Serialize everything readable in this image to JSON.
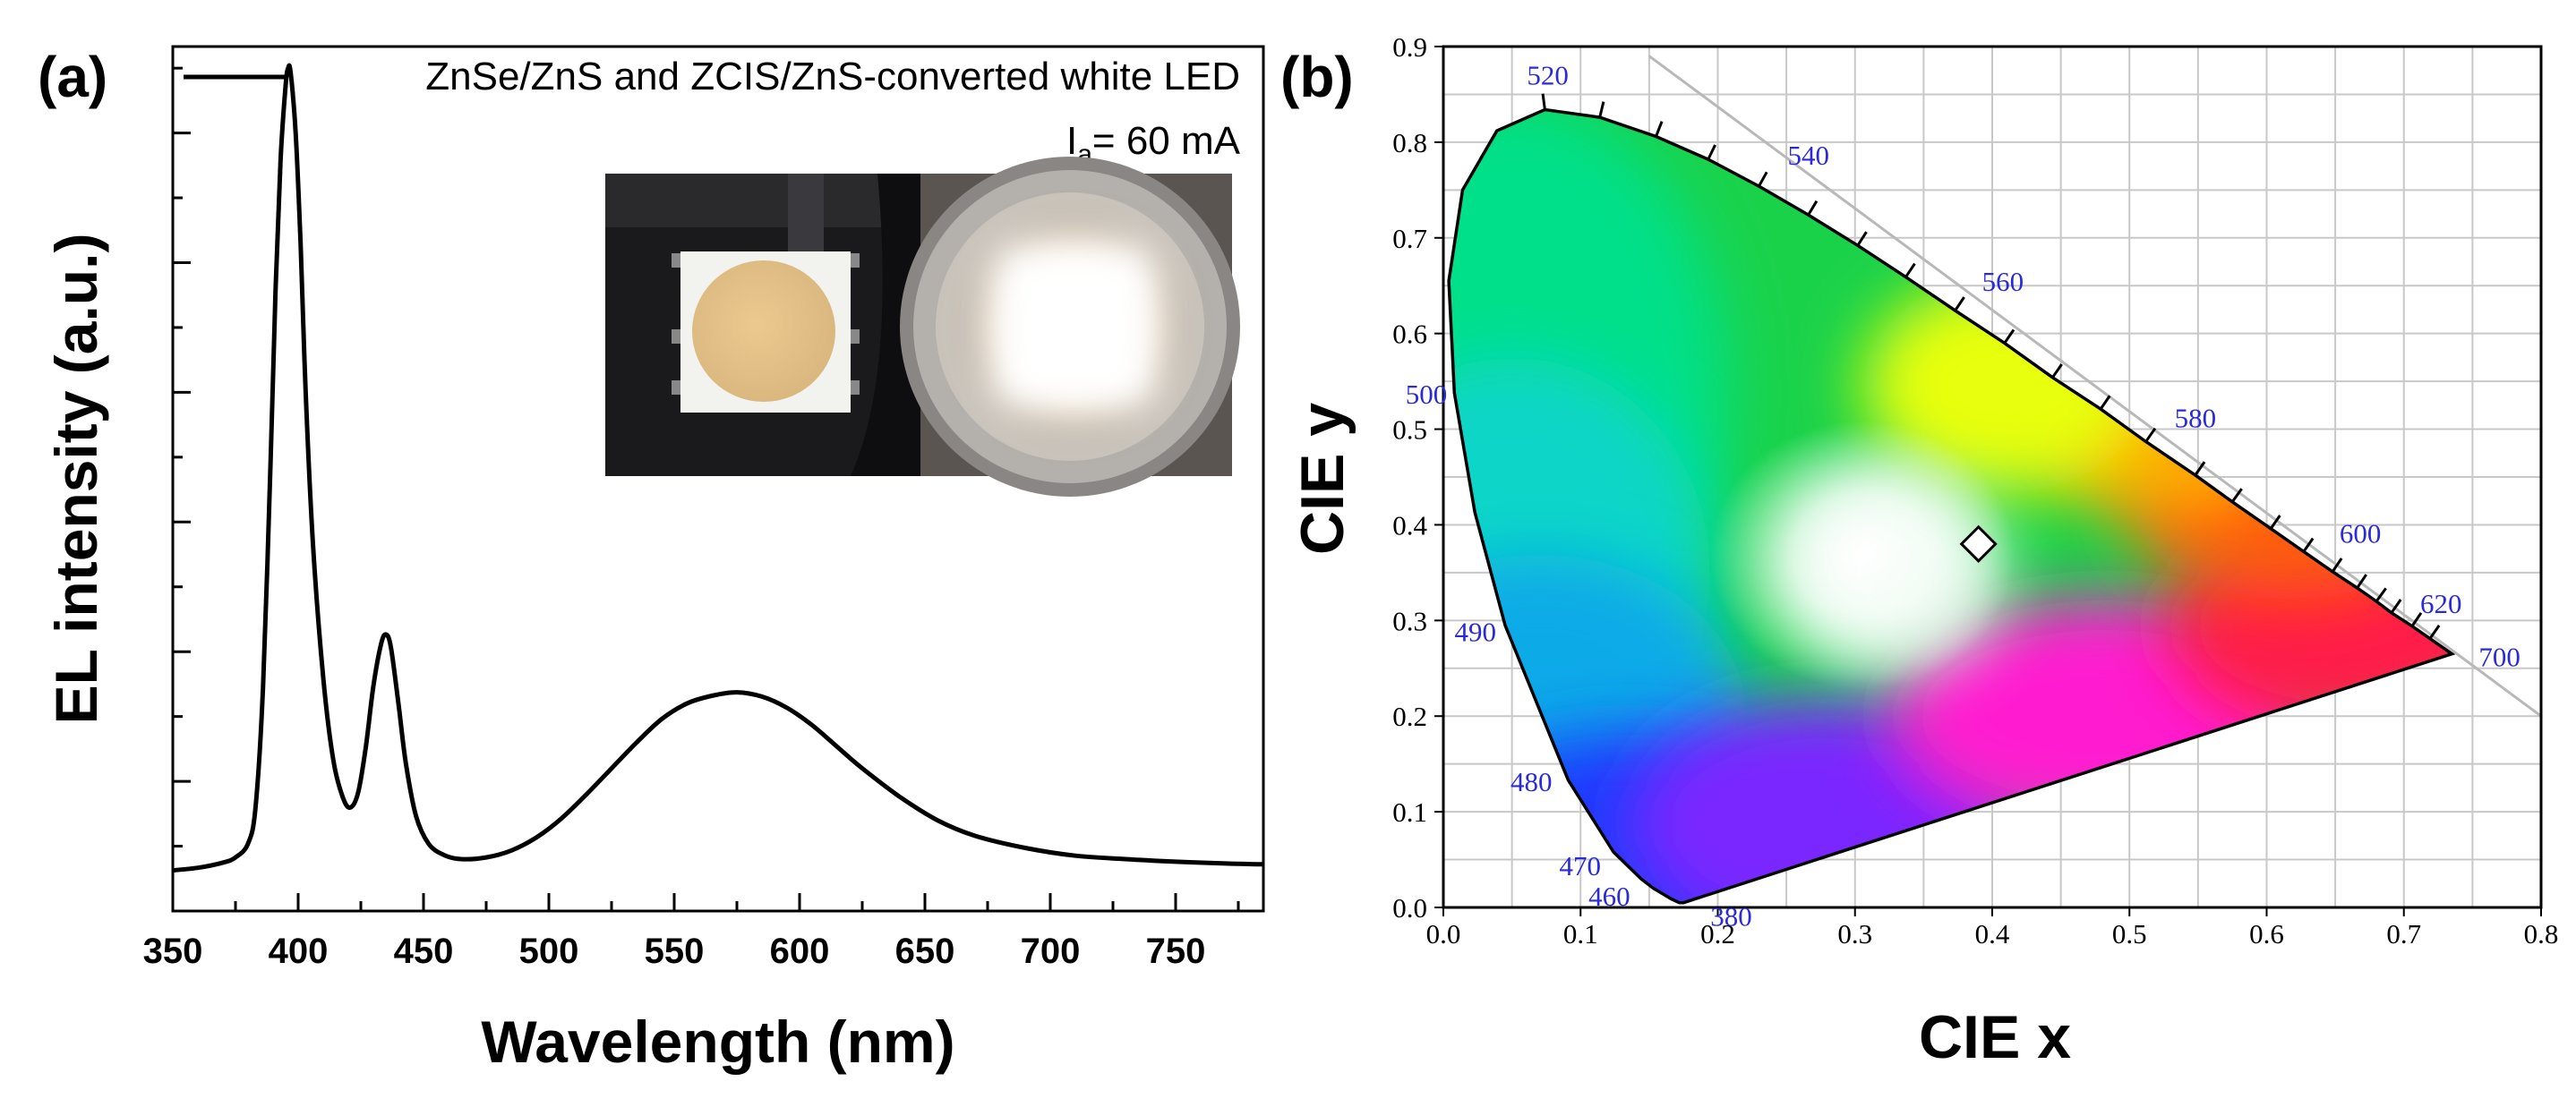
{
  "panels": [
    {
      "label": "(a)",
      "chart_data": {
        "type": "line",
        "title": "",
        "xlabel": "Wavelength (nm)",
        "ylabel": "EL intensity (a.u.)",
        "xlim": [
          350,
          785
        ],
        "ylim": [
          0,
          1.0
        ],
        "xticks": [
          350,
          400,
          450,
          500,
          550,
          600,
          650,
          700,
          750
        ],
        "yticks_labeled": false,
        "grid": false,
        "legend": {
          "entry": "ZnSe/ZnS and ZCIS/ZnS-converted white LED",
          "placement": "top-right"
        },
        "annotation": {
          "prefix": "I",
          "subscript": "a",
          "text": "= 60 mA"
        },
        "inset": {
          "description": "LED photographs (off / on)"
        },
        "series": [
          {
            "name": "ZnSe/ZnS and ZCIS/ZnS-converted white LED",
            "color": "#000000",
            "x": [
              350,
              360,
              370,
              375,
              380,
              383,
              386,
              389,
              391,
              393,
              395,
              396,
              397,
              399,
              401,
              403,
              406,
              410,
              414,
              418,
              421,
              424,
              427,
              430,
              433,
              435,
              437,
              440,
              443,
              447,
              452,
              458,
              465,
              475,
              485,
              495,
              505,
              515,
              525,
              535,
              545,
              555,
              565,
              575,
              585,
              595,
              605,
              615,
              625,
              640,
              655,
              670,
              690,
              710,
              730,
              750,
              770,
              785
            ],
            "y": [
              0.047,
              0.05,
              0.056,
              0.062,
              0.078,
              0.12,
              0.26,
              0.52,
              0.72,
              0.87,
              0.955,
              0.975,
              0.97,
              0.9,
              0.77,
              0.6,
              0.42,
              0.27,
              0.175,
              0.13,
              0.12,
              0.138,
              0.19,
              0.26,
              0.308,
              0.32,
              0.305,
              0.24,
              0.17,
              0.11,
              0.078,
              0.065,
              0.06,
              0.062,
              0.07,
              0.085,
              0.107,
              0.135,
              0.165,
              0.195,
              0.222,
              0.24,
              0.249,
              0.253,
              0.248,
              0.235,
              0.215,
              0.19,
              0.165,
              0.132,
              0.105,
              0.087,
              0.073,
              0.064,
              0.06,
              0.057,
              0.055,
              0.054
            ]
          }
        ]
      }
    },
    {
      "label": "(b)",
      "chart_data": {
        "type": "scatter",
        "title": "",
        "xlabel": "CIE x",
        "ylabel": "CIE y",
        "xlim": [
          0.0,
          0.8
        ],
        "ylim": [
          0.0,
          0.9
        ],
        "xticks": [
          0.0,
          0.1,
          0.2,
          0.3,
          0.4,
          0.5,
          0.6,
          0.7,
          0.8
        ],
        "xtick_labels": [
          "0.0",
          "0.1",
          "0.2",
          "0.3",
          "0.4",
          "0.5",
          "0.6",
          "0.7",
          "0.8"
        ],
        "yticks": [
          0.0,
          0.1,
          0.2,
          0.3,
          0.4,
          0.5,
          0.6,
          0.7,
          0.8,
          0.9
        ],
        "ytick_labels": [
          "0.0",
          "0.1",
          "0.2",
          "0.3",
          "0.4",
          "0.5",
          "0.6",
          "0.7",
          "0.8",
          "0.9"
        ],
        "grid": true,
        "point": {
          "x": 0.39,
          "y": 0.38,
          "marker": "diamond"
        },
        "wavelength_labels": [
          {
            "nm": "380",
            "x": 0.175,
            "y": 0.005
          },
          {
            "nm": "460",
            "x": 0.144,
            "y": 0.03
          },
          {
            "nm": "470",
            "x": 0.124,
            "y": 0.058
          },
          {
            "nm": "480",
            "x": 0.091,
            "y": 0.133
          },
          {
            "nm": "490",
            "x": 0.045,
            "y": 0.295
          },
          {
            "nm": "500",
            "x": 0.008,
            "y": 0.538
          },
          {
            "nm": "520",
            "x": 0.074,
            "y": 0.834
          },
          {
            "nm": "540",
            "x": 0.23,
            "y": 0.754
          },
          {
            "nm": "560",
            "x": 0.373,
            "y": 0.624
          },
          {
            "nm": "580",
            "x": 0.512,
            "y": 0.487
          },
          {
            "nm": "600",
            "x": 0.627,
            "y": 0.372
          },
          {
            "nm": "620",
            "x": 0.691,
            "y": 0.308
          },
          {
            "nm": "700",
            "x": 0.735,
            "y": 0.265
          }
        ],
        "locus": [
          [
            0.175,
            0.005
          ],
          [
            0.174,
            0.005
          ],
          [
            0.172,
            0.005
          ],
          [
            0.166,
            0.009
          ],
          [
            0.153,
            0.02
          ],
          [
            0.144,
            0.03
          ],
          [
            0.124,
            0.058
          ],
          [
            0.091,
            0.133
          ],
          [
            0.045,
            0.295
          ],
          [
            0.023,
            0.413
          ],
          [
            0.008,
            0.538
          ],
          [
            0.004,
            0.655
          ],
          [
            0.014,
            0.75
          ],
          [
            0.039,
            0.812
          ],
          [
            0.074,
            0.834
          ],
          [
            0.114,
            0.826
          ],
          [
            0.155,
            0.806
          ],
          [
            0.193,
            0.782
          ],
          [
            0.23,
            0.754
          ],
          [
            0.266,
            0.724
          ],
          [
            0.302,
            0.692
          ],
          [
            0.337,
            0.659
          ],
          [
            0.373,
            0.624
          ],
          [
            0.409,
            0.59
          ],
          [
            0.444,
            0.554
          ],
          [
            0.479,
            0.521
          ],
          [
            0.512,
            0.487
          ],
          [
            0.548,
            0.452
          ],
          [
            0.575,
            0.424
          ],
          [
            0.603,
            0.396
          ],
          [
            0.627,
            0.372
          ],
          [
            0.648,
            0.351
          ],
          [
            0.666,
            0.334
          ],
          [
            0.68,
            0.32
          ],
          [
            0.691,
            0.308
          ],
          [
            0.706,
            0.294
          ],
          [
            0.719,
            0.281
          ],
          [
            0.735,
            0.265
          ]
        ]
      }
    }
  ]
}
